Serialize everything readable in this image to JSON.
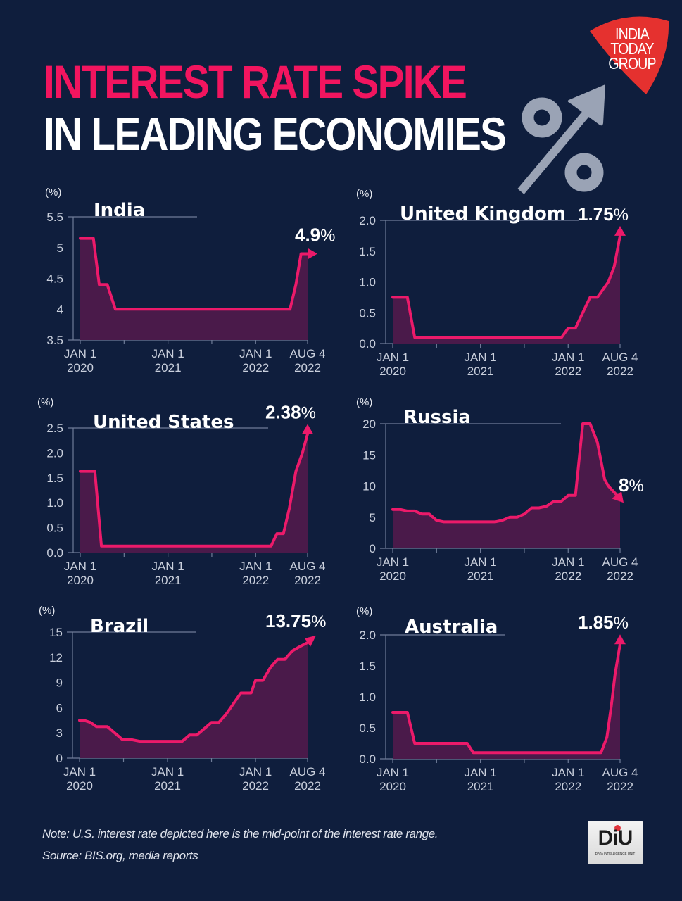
{
  "header": {
    "title_line1": "INTEREST RATE SPIKE",
    "title_line2": "IN LEADING ECONOMIES",
    "title_line1_color": "#f2155f",
    "title_line2_color": "#ffffff"
  },
  "logo": {
    "text_lines": [
      "INDIA",
      "TODAY",
      "GROUP"
    ],
    "color": "#e5312f"
  },
  "decor_icon": "percent-up-arrow-icon",
  "colors": {
    "background": "#0f1e3d",
    "line": "#ec1a6a",
    "area": "#4a1a4a",
    "axis": "#6f7c98"
  },
  "footer": {
    "note": "Note: U.S. interest rate depicted here is the mid-point of the interest rate range.",
    "source": "Source: BIS.org, media reports",
    "badge_text": "DiU",
    "badge_subtext": "DATA INTELLIGENCE UNIT"
  },
  "chart_data": [
    {
      "type": "area",
      "title": "India",
      "ylabel": "(%)",
      "xlabel": "",
      "ylim": [
        3.5,
        5.5
      ],
      "yticks": [
        3.5,
        4,
        4.5,
        5,
        5.5
      ],
      "ytick_labels": [
        "3.5",
        "4",
        "4.5",
        "5",
        "5.5"
      ],
      "xticks": [
        0,
        12,
        24,
        31.1
      ],
      "xtick_labels": [
        [
          "JAN 1",
          "2020"
        ],
        [
          "JAN 1",
          "2021"
        ],
        [
          "JAN 1",
          "2022"
        ],
        [
          "AUG 4",
          "2022"
        ]
      ],
      "minor_xticks": [
        6,
        18
      ],
      "end_label": "4.9",
      "end_suffix": "%",
      "arrow": "right",
      "x": [
        0,
        1.8,
        2.6,
        3.3,
        3.7,
        4.8,
        28.7,
        29.5,
        30.2,
        31.1
      ],
      "values": [
        5.15,
        5.15,
        4.4,
        4.4,
        4.4,
        4.0,
        4.0,
        4.4,
        4.9,
        4.9
      ]
    },
    {
      "type": "area",
      "title": "United Kingdom",
      "ylabel": "(%)",
      "xlabel": "",
      "ylim": [
        0,
        2.0
      ],
      "yticks": [
        0,
        0.5,
        1.0,
        1.5,
        2.0
      ],
      "ytick_labels": [
        "0.0",
        "0.5",
        "1.0",
        "1.5",
        "2.0"
      ],
      "xticks": [
        0,
        12,
        24,
        31.1
      ],
      "xtick_labels": [
        [
          "JAN 1",
          "2020"
        ],
        [
          "JAN 1",
          "2021"
        ],
        [
          "JAN 1",
          "2022"
        ],
        [
          "AUG 4",
          "2022"
        ]
      ],
      "minor_xticks": [
        6,
        18
      ],
      "end_label": "1.75",
      "end_suffix": "%",
      "arrow": "up",
      "x": [
        0,
        2.0,
        3.0,
        23.1,
        24.0,
        25.0,
        27.0,
        28.0,
        29.5,
        30.3,
        31.1
      ],
      "values": [
        0.75,
        0.75,
        0.1,
        0.1,
        0.25,
        0.25,
        0.75,
        0.75,
        1.0,
        1.25,
        1.75
      ]
    },
    {
      "type": "area",
      "title": "United States",
      "ylabel": "(%)",
      "xlabel": "",
      "ylim": [
        0,
        2.5
      ],
      "yticks": [
        0,
        0.5,
        1.0,
        1.5,
        2.0,
        2.5
      ],
      "ytick_labels": [
        "0.0",
        "0.5",
        "1.0",
        "1.5",
        "2.0",
        "2.5"
      ],
      "xticks": [
        0,
        12,
        24,
        31.1
      ],
      "xtick_labels": [
        [
          "JAN 1",
          "2020"
        ],
        [
          "JAN 1",
          "2021"
        ],
        [
          "JAN 1",
          "2022"
        ],
        [
          "AUG 4",
          "2022"
        ]
      ],
      "minor_xticks": [
        6,
        18
      ],
      "end_label": "2.38",
      "end_suffix": "%",
      "arrow": "up",
      "x": [
        0,
        2.0,
        2.9,
        26.1,
        26.9,
        27.8,
        28.6,
        29.5,
        30.4,
        31.1
      ],
      "values": [
        1.63,
        1.63,
        0.13,
        0.13,
        0.38,
        0.38,
        0.88,
        1.63,
        2.0,
        2.38
      ]
    },
    {
      "type": "area",
      "title": "Russia",
      "ylabel": "(%)",
      "xlabel": "",
      "ylim": [
        0,
        20
      ],
      "yticks": [
        0,
        5,
        10,
        15,
        20
      ],
      "ytick_labels": [
        "0",
        "5",
        "10",
        "15",
        "20"
      ],
      "xticks": [
        0,
        12,
        24,
        31.1
      ],
      "xtick_labels": [
        [
          "JAN 1",
          "2020"
        ],
        [
          "JAN 1",
          "2021"
        ],
        [
          "JAN 1",
          "2022"
        ],
        [
          "AUG 4",
          "2022"
        ]
      ],
      "minor_xticks": [
        6,
        18
      ],
      "end_label": "8",
      "end_suffix": "%",
      "arrow": "down",
      "x": [
        0,
        1.0,
        2.0,
        3.0,
        4.0,
        5.0,
        6.0,
        7.0,
        14.0,
        15.0,
        16.0,
        17.0,
        18.0,
        19.0,
        20.0,
        21.0,
        22.0,
        23.0,
        24.0,
        25.0,
        26.0,
        27.0,
        28.0,
        29.0,
        29.5,
        30.3,
        31.1
      ],
      "values": [
        6.25,
        6.25,
        6.0,
        6.0,
        5.5,
        5.5,
        4.5,
        4.25,
        4.25,
        4.5,
        5.0,
        5.0,
        5.5,
        6.5,
        6.5,
        6.75,
        7.5,
        7.5,
        8.5,
        8.5,
        20.0,
        20.0,
        17.0,
        11.0,
        10.0,
        9.0,
        8.0
      ]
    },
    {
      "type": "area",
      "title": "Brazil",
      "ylabel": "(%)",
      "xlabel": "",
      "ylim": [
        0,
        15
      ],
      "yticks": [
        0,
        3,
        6,
        9,
        12,
        15
      ],
      "ytick_labels": [
        "0",
        "3",
        "6",
        "9",
        "12",
        "15"
      ],
      "xticks": [
        0,
        12,
        24,
        31.1
      ],
      "xtick_labels": [
        [
          "JAN 1",
          "2020"
        ],
        [
          "JAN 1",
          "2021"
        ],
        [
          "JAN 1",
          "2022"
        ],
        [
          "AUG 4",
          "2022"
        ]
      ],
      "minor_xticks": [
        6,
        18
      ],
      "end_label": "13.75",
      "end_suffix": "%",
      "arrow": "right-up",
      "x": [
        0,
        0.6,
        1.5,
        2.3,
        3.0,
        3.8,
        5.8,
        6.8,
        8.2,
        14.0,
        15.0,
        16.0,
        18.0,
        19.0,
        20.0,
        22.0,
        22.5,
        23.4,
        24.0,
        25.0,
        26.0,
        27.0,
        28.0,
        29.0,
        30.0,
        31.1
      ],
      "values": [
        4.5,
        4.5,
        4.25,
        3.75,
        3.75,
        3.75,
        2.25,
        2.25,
        2.0,
        2.0,
        2.75,
        2.75,
        4.25,
        4.25,
        5.25,
        7.75,
        7.75,
        7.75,
        9.25,
        9.25,
        10.75,
        11.75,
        11.75,
        12.75,
        13.25,
        13.75
      ]
    },
    {
      "type": "area",
      "title": "Australia",
      "ylabel": "(%)",
      "xlabel": "",
      "ylim": [
        0,
        2.0
      ],
      "yticks": [
        0,
        0.5,
        1.0,
        1.5,
        2.0
      ],
      "ytick_labels": [
        "0.0",
        "0.5",
        "1.0",
        "1.5",
        "2.0"
      ],
      "xticks": [
        0,
        12,
        24,
        31.1
      ],
      "xtick_labels": [
        [
          "JAN 1",
          "2020"
        ],
        [
          "JAN 1",
          "2021"
        ],
        [
          "JAN 1",
          "2022"
        ],
        [
          "AUG 4",
          "2022"
        ]
      ],
      "minor_xticks": [
        6,
        18
      ],
      "end_label": "1.85",
      "end_suffix": "%",
      "arrow": "up",
      "x": [
        0,
        2.0,
        3.0,
        10.2,
        11.0,
        27.8,
        28.5,
        29.3,
        29.9,
        30.4,
        31.1
      ],
      "values": [
        0.75,
        0.75,
        0.25,
        0.25,
        0.1,
        0.1,
        0.1,
        0.35,
        0.85,
        1.35,
        1.85
      ]
    }
  ]
}
